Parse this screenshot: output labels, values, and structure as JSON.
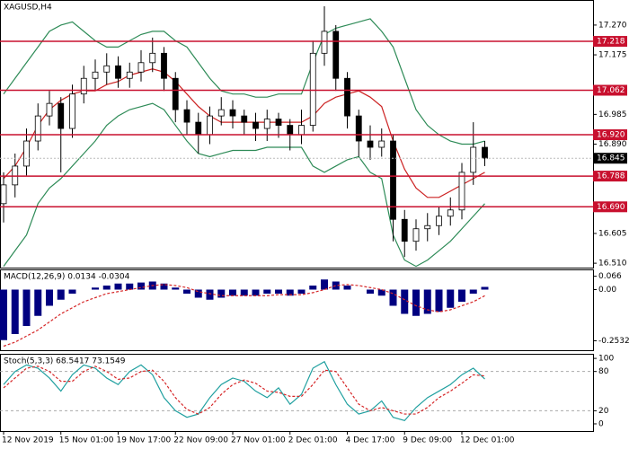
{
  "chart_data": [
    {
      "type": "candlestick",
      "title": "XAGUSD,H4",
      "categories": [
        "12 Nov 2019",
        null,
        null,
        null,
        null,
        "15 Nov 01:00",
        null,
        null,
        null,
        null,
        "19 Nov 17:00",
        null,
        null,
        null,
        null,
        "22 Nov 09:00",
        null,
        null,
        null,
        null,
        "27 Nov 01:00",
        null,
        null,
        null,
        null,
        "2 Dec 01:00",
        null,
        null,
        null,
        null,
        "4 Dec 17:00",
        null,
        null,
        null,
        null,
        "9 Dec 09:00",
        null,
        null,
        null,
        null,
        "12 Dec 01:00",
        null,
        null
      ],
      "open": [
        16.7,
        16.76,
        16.82,
        16.9,
        16.98,
        17.02,
        16.94,
        17.05,
        17.1,
        17.12,
        17.14,
        17.1,
        17.12,
        17.15,
        17.18,
        17.1,
        17.0,
        16.96,
        16.92,
        16.98,
        17.0,
        16.98,
        16.96,
        16.94,
        16.97,
        16.95,
        16.92,
        16.95,
        17.18,
        17.25,
        17.1,
        16.98,
        16.9,
        16.88,
        16.9,
        16.65,
        16.58,
        16.62,
        16.63,
        16.66,
        16.68,
        16.8,
        16.88
      ],
      "high": [
        16.8,
        16.86,
        16.94,
        17.02,
        17.06,
        17.04,
        17.08,
        17.14,
        17.16,
        17.18,
        17.17,
        17.15,
        17.19,
        17.23,
        17.2,
        17.12,
        17.03,
        16.99,
        17.01,
        17.04,
        17.03,
        17.0,
        16.99,
        17.0,
        16.99,
        16.97,
        17.0,
        17.22,
        17.33,
        17.27,
        17.12,
        17.0,
        16.95,
        16.94,
        16.92,
        16.68,
        16.65,
        16.67,
        16.69,
        16.72,
        16.83,
        16.96,
        16.9
      ],
      "low": [
        16.64,
        16.72,
        16.79,
        16.87,
        16.95,
        16.8,
        16.91,
        17.02,
        17.06,
        17.08,
        17.07,
        17.07,
        17.09,
        17.12,
        17.06,
        16.96,
        16.92,
        16.86,
        16.89,
        16.95,
        16.94,
        16.92,
        16.9,
        16.9,
        16.91,
        16.87,
        16.89,
        16.93,
        17.14,
        17.06,
        16.94,
        16.85,
        16.84,
        16.85,
        16.58,
        16.53,
        16.55,
        16.58,
        16.6,
        16.63,
        16.65,
        16.76,
        16.82
      ],
      "close": [
        16.76,
        16.82,
        16.9,
        16.98,
        17.02,
        16.94,
        17.05,
        17.1,
        17.12,
        17.14,
        17.1,
        17.12,
        17.15,
        17.18,
        17.1,
        17.0,
        16.96,
        16.92,
        16.98,
        17.0,
        16.98,
        16.96,
        16.94,
        16.97,
        16.95,
        16.92,
        16.95,
        17.18,
        17.25,
        17.1,
        16.98,
        16.9,
        16.88,
        16.9,
        16.65,
        16.58,
        16.62,
        16.63,
        16.66,
        16.68,
        16.8,
        16.88,
        16.845
      ],
      "up_color": "#ffffff",
      "down_color": "#000000",
      "overlays": [
        {
          "color": "#2e8b57",
          "values": [
            17.05,
            17.1,
            17.15,
            17.2,
            17.25,
            17.27,
            17.28,
            17.25,
            17.22,
            17.2,
            17.2,
            17.22,
            17.24,
            17.25,
            17.25,
            17.22,
            17.2,
            17.15,
            17.1,
            17.06,
            17.05,
            17.05,
            17.04,
            17.04,
            17.05,
            17.05,
            17.05,
            17.15,
            17.24,
            17.26,
            17.27,
            17.28,
            17.29,
            17.25,
            17.2,
            17.1,
            17.0,
            16.95,
            16.92,
            16.9,
            16.89,
            16.89,
            16.9
          ]
        },
        {
          "color": "#2e8b57",
          "values": [
            16.5,
            16.55,
            16.6,
            16.7,
            16.75,
            16.78,
            16.82,
            16.86,
            16.9,
            16.95,
            16.98,
            17.0,
            17.01,
            17.02,
            17.0,
            16.95,
            16.9,
            16.86,
            16.85,
            16.86,
            16.87,
            16.87,
            16.87,
            16.88,
            16.88,
            16.88,
            16.88,
            16.82,
            16.8,
            16.82,
            16.84,
            16.85,
            16.8,
            16.78,
            16.6,
            16.52,
            16.5,
            16.52,
            16.55,
            16.58,
            16.62,
            16.66,
            16.7
          ]
        },
        {
          "color": "#cc2222",
          "values": [
            16.78,
            16.82,
            16.88,
            16.95,
            17.0,
            17.03,
            17.05,
            17.06,
            17.06,
            17.08,
            17.09,
            17.11,
            17.12,
            17.13,
            17.12,
            17.09,
            17.05,
            17.01,
            16.98,
            16.96,
            16.96,
            16.96,
            16.96,
            16.96,
            16.96,
            16.96,
            16.96,
            16.98,
            17.02,
            17.04,
            17.05,
            17.06,
            17.04,
            17.01,
            16.9,
            16.81,
            16.75,
            16.72,
            16.72,
            16.74,
            16.76,
            16.78,
            16.8
          ]
        }
      ],
      "ylim": [
        16.496,
        17.35
      ],
      "yticks": [
        {
          "value": 17.27,
          "label": "17.270"
        },
        17.175,
        16.985,
        {
          "value": 16.89,
          "label": "16.890"
        },
        16.605,
        {
          "value": 16.51,
          "label": "16.510"
        }
      ],
      "levels": [
        17.218,
        17.062,
        {
          "value": 16.92,
          "label": "16.920"
        },
        16.788,
        {
          "value": 16.69,
          "label": "16.690"
        }
      ],
      "level_color": "#c8102e",
      "last_price": 16.845
    },
    {
      "type": "macd",
      "title": "MACD(12,26,9) 0.0134 -0.0304",
      "values": [
        -0.25,
        -0.22,
        -0.18,
        -0.13,
        -0.08,
        -0.05,
        -0.02,
        0.0,
        0.01,
        0.02,
        0.03,
        0.03,
        0.035,
        0.04,
        0.03,
        0.01,
        -0.02,
        -0.04,
        -0.05,
        -0.04,
        -0.03,
        -0.03,
        -0.03,
        -0.02,
        -0.02,
        -0.03,
        -0.02,
        0.02,
        0.05,
        0.04,
        0.02,
        0.0,
        -0.02,
        -0.03,
        -0.08,
        -0.12,
        -0.13,
        -0.12,
        -0.11,
        -0.09,
        -0.06,
        -0.02,
        0.0134
      ],
      "color": "#000080",
      "signal": {
        "color": "#d62728",
        "values": [
          -0.28,
          -0.26,
          -0.23,
          -0.2,
          -0.16,
          -0.12,
          -0.09,
          -0.06,
          -0.04,
          -0.02,
          -0.01,
          0.0,
          0.01,
          0.02,
          0.025,
          0.02,
          0.01,
          -0.01,
          -0.02,
          -0.03,
          -0.03,
          -0.03,
          -0.03,
          -0.03,
          -0.025,
          -0.025,
          -0.025,
          -0.015,
          0.0,
          0.02,
          0.025,
          0.02,
          0.01,
          0.0,
          -0.02,
          -0.05,
          -0.08,
          -0.1,
          -0.11,
          -0.1,
          -0.08,
          -0.06,
          -0.0304
        ]
      },
      "ylim": [
        -0.3,
        0.1
      ],
      "yticks": [
        0.066,
        {
          "value": 0,
          "label": "0.00"
        },
        -0.2532
      ]
    },
    {
      "type": "stoch",
      "title": "Stoch(5,3,3) 68.5417 73.1549",
      "series": [
        {
          "color": "#20a0a0",
          "dashed": false,
          "values": [
            60,
            80,
            90,
            85,
            70,
            50,
            75,
            90,
            85,
            70,
            60,
            80,
            90,
            75,
            40,
            20,
            10,
            15,
            40,
            60,
            70,
            65,
            50,
            40,
            55,
            30,
            45,
            85,
            95,
            60,
            30,
            15,
            20,
            35,
            10,
            5,
            25,
            40,
            50,
            60,
            75,
            85,
            68.5417
          ]
        },
        {
          "color": "#d62728",
          "dashed": true,
          "values": [
            55,
            70,
            85,
            88,
            80,
            65,
            65,
            80,
            88,
            80,
            68,
            70,
            80,
            82,
            65,
            40,
            22,
            15,
            25,
            45,
            60,
            67,
            62,
            50,
            48,
            42,
            42,
            60,
            82,
            80,
            55,
            30,
            20,
            25,
            20,
            15,
            15,
            25,
            40,
            50,
            62,
            75,
            73.1549
          ]
        }
      ],
      "ylim": [
        -11,
        107
      ],
      "yticks": [
        100,
        80,
        20,
        0
      ],
      "levels": [
        80,
        20
      ]
    }
  ]
}
